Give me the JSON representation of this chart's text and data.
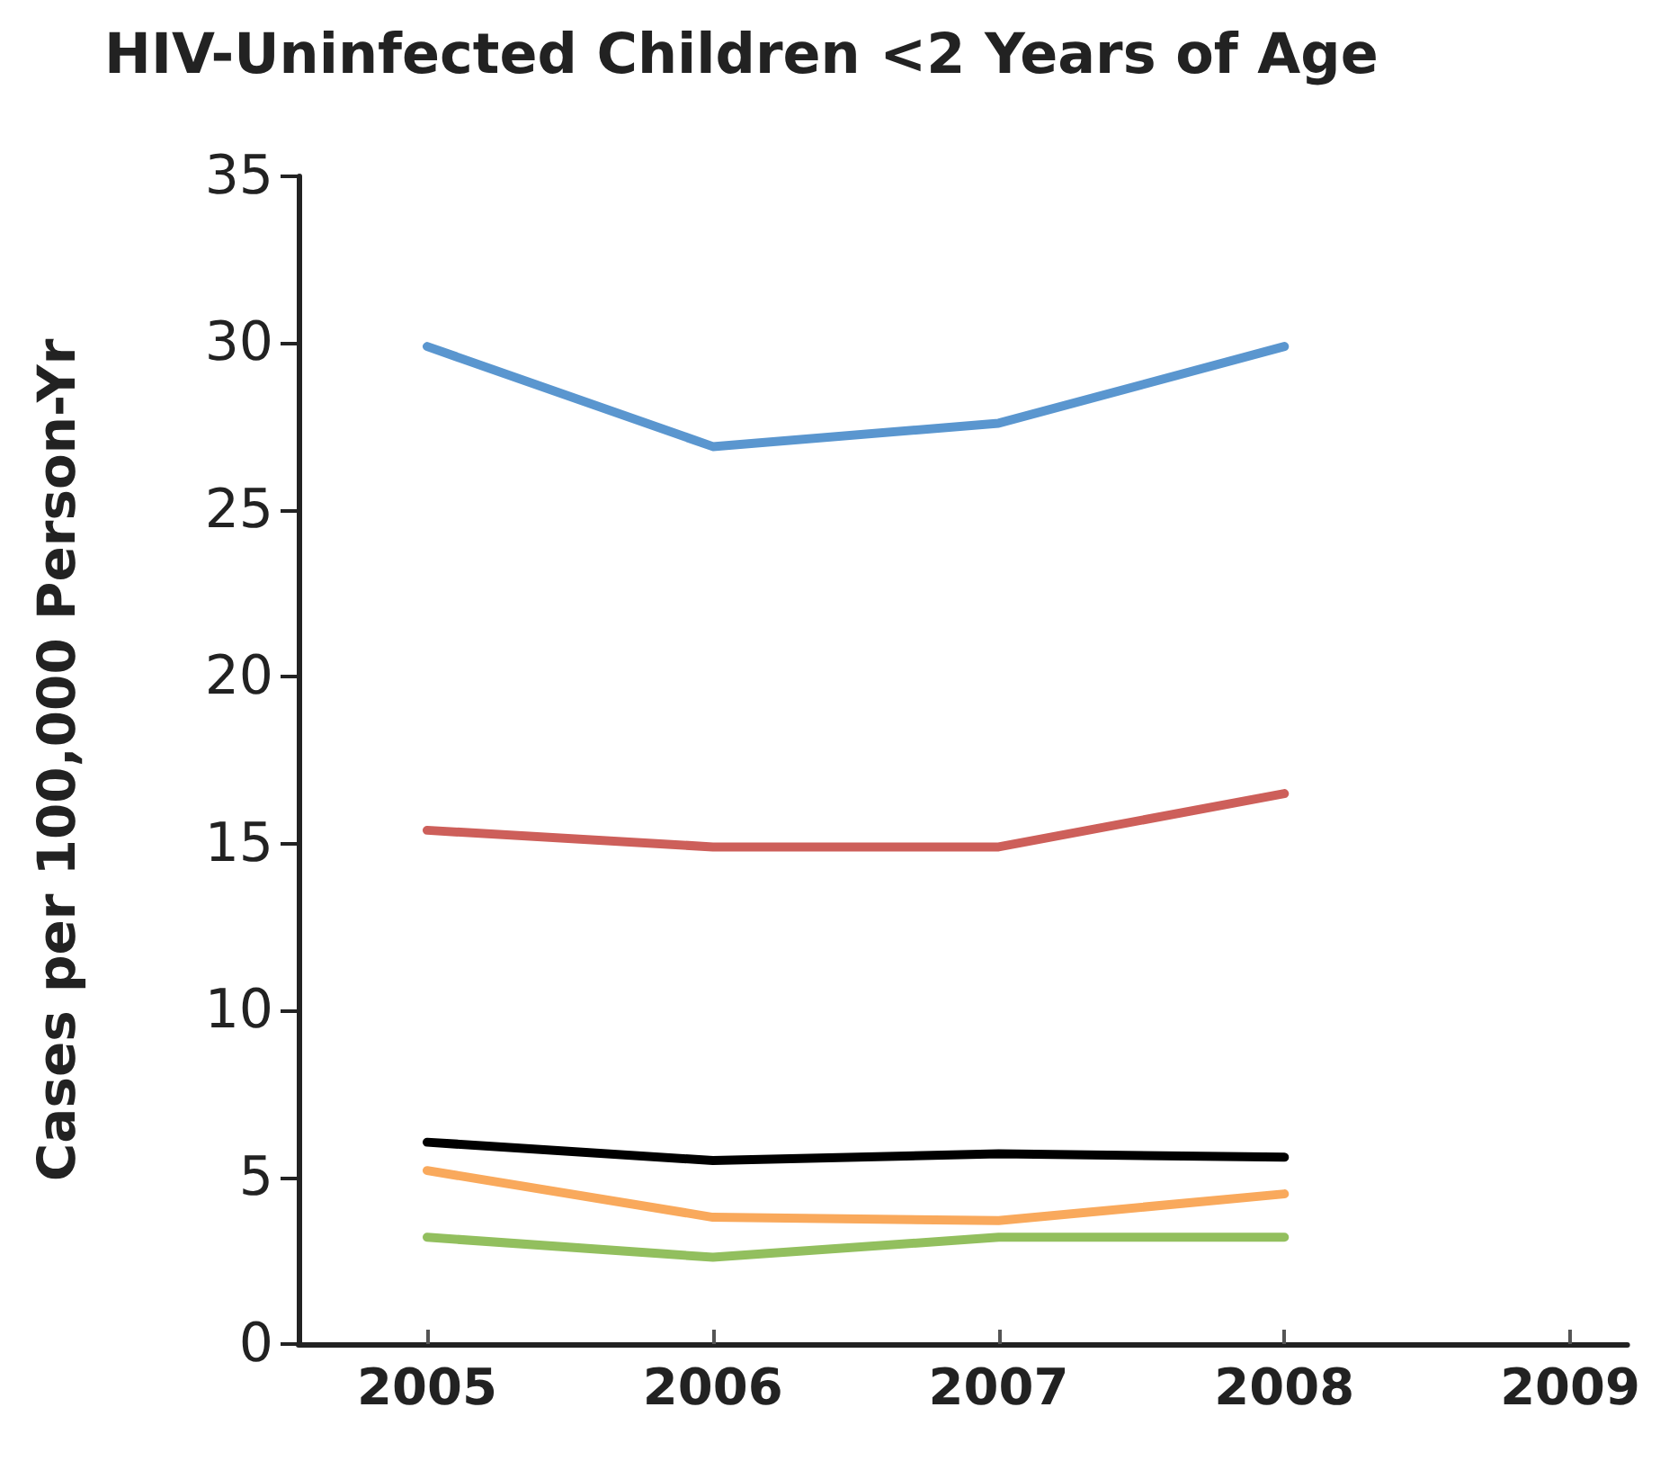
{
  "chart_data": {
    "type": "line",
    "title": "HIV-Uninfected Children <2 Years of Age",
    "ylabel": "Cases per 100,000 Person-Yr",
    "x": [
      2005,
      2006,
      2007,
      2008
    ],
    "xlim": [
      2004.55,
      2009.2
    ],
    "xticks": [
      2005,
      2006,
      2007,
      2008,
      2009
    ],
    "ylim": [
      0,
      35
    ],
    "yticks": [
      0,
      5,
      10,
      15,
      20,
      25,
      30,
      35
    ],
    "series": [
      {
        "color": "#5a96cf",
        "values": [
          29.9,
          26.9,
          27.6,
          29.9
        ]
      },
      {
        "color": "#cd5f5a",
        "values": [
          15.4,
          14.9,
          14.9,
          16.5
        ]
      },
      {
        "color": "#000000",
        "values": [
          6.05,
          5.5,
          5.7,
          5.6
        ]
      },
      {
        "color": "#f9a95c",
        "values": [
          5.2,
          3.8,
          3.7,
          4.5
        ]
      },
      {
        "color": "#92bf5e",
        "values": [
          3.2,
          2.6,
          3.2,
          3.2
        ]
      }
    ],
    "grid": false,
    "marker": "none",
    "line_style": "solid"
  }
}
